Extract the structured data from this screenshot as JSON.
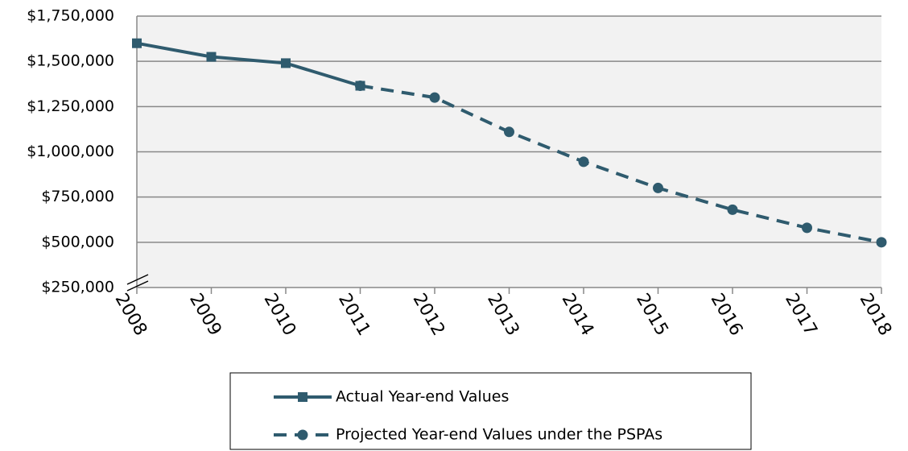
{
  "chart_data": {
    "type": "line",
    "x": [
      2008,
      2009,
      2010,
      2011,
      2012,
      2013,
      2014,
      2015,
      2016,
      2017,
      2018
    ],
    "xlim": [
      2008,
      2018
    ],
    "xticks": [
      2008,
      2009,
      2010,
      2011,
      2012,
      2013,
      2014,
      2015,
      2016,
      2017,
      2018
    ],
    "ylim": [
      250000,
      1750000
    ],
    "yticks": [
      {
        "value": 250000,
        "label": "$250,000"
      },
      {
        "value": 500000,
        "label": "$500,000"
      },
      {
        "value": 750000,
        "label": "$750,000"
      },
      {
        "value": 1000000,
        "label": "$1,000,000"
      },
      {
        "value": 1250000,
        "label": "$1,250,000"
      },
      {
        "value": 1500000,
        "label": "$1,500,000"
      },
      {
        "value": 1750000,
        "label": "$1,750,000"
      }
    ],
    "grid": true,
    "series": [
      {
        "name": "Actual Year-end Values",
        "color": "#2f5b6e",
        "dash": false,
        "marker": "square",
        "values": [
          1600000,
          1525000,
          1490000,
          1365000,
          null,
          null,
          null,
          null,
          null,
          null,
          null
        ]
      },
      {
        "name": "Projected Year-end Values under the PSPAs",
        "color": "#2f5b6e",
        "dash": true,
        "marker": "circle",
        "values": [
          null,
          null,
          null,
          1365000,
          1300000,
          1110000,
          945000,
          800000,
          680000,
          580000,
          500000
        ]
      }
    ]
  }
}
